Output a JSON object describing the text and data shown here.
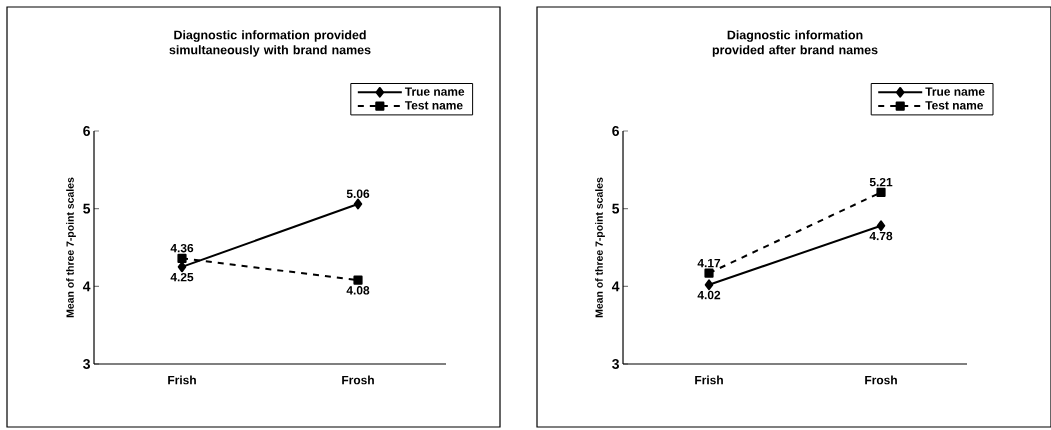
{
  "chart_data": [
    {
      "type": "line",
      "title": "Diagnostic information provided simultaneously with brand names",
      "ylabel": "Mean of three 7-point scales",
      "categories": [
        "Frish",
        "Frosh"
      ],
      "ylim": [
        3,
        6
      ],
      "yticks": [
        3,
        4,
        5,
        6
      ],
      "legend": "top right",
      "data_labels": true,
      "series": [
        {
          "name": "True name",
          "color": "#000000",
          "marker": "diamond",
          "line_style": "solid",
          "values": [
            4.25,
            5.06
          ]
        },
        {
          "name": "Test name",
          "color": "#000000",
          "marker": "square",
          "line_style": "dashed",
          "values": [
            4.36,
            4.08
          ]
        }
      ]
    },
    {
      "type": "line",
      "title": "Diagnostic information provided after brand names",
      "ylabel": "Mean of three 7-point scales",
      "categories": [
        "Frish",
        "Frosh"
      ],
      "ylim": [
        3,
        6
      ],
      "yticks": [
        3,
        4,
        5,
        6
      ],
      "legend": "top right",
      "data_labels": true,
      "series": [
        {
          "name": "True name",
          "color": "#000000",
          "marker": "diamond",
          "line_style": "solid",
          "values": [
            4.02,
            4.78
          ]
        },
        {
          "name": "Test name",
          "color": "#000000",
          "marker": "square",
          "line_style": "dashed",
          "values": [
            4.17,
            5.21
          ]
        }
      ]
    }
  ]
}
